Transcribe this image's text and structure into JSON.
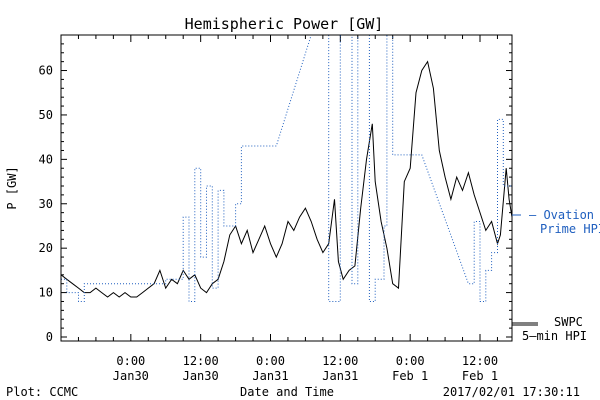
{
  "chart_data": {
    "type": "line",
    "title": "Hemispheric Power [GW]",
    "ylabel": "P [GW]",
    "xlabel": "Date and Time",
    "ylim": [
      0,
      68
    ],
    "xlim": [
      "2017-01-29 12:00",
      "2017-02-01 17:30"
    ],
    "y_ticks": [
      0,
      10,
      20,
      30,
      40,
      50,
      60
    ],
    "x_ticks": [
      {
        "t": "2017-01-30 00:00",
        "time": "0:00",
        "date": "Jan30"
      },
      {
        "t": "2017-01-30 12:00",
        "time": "12:00",
        "date": "Jan30"
      },
      {
        "t": "2017-01-31 00:00",
        "time": "0:00",
        "date": "Jan31"
      },
      {
        "t": "2017-01-31 12:00",
        "time": "12:00",
        "date": "Jan31"
      },
      {
        "t": "2017-02-01 00:00",
        "time": "0:00",
        "date": "Feb 1"
      },
      {
        "t": "2017-02-01 12:00",
        "time": "12:00",
        "date": "Feb 1"
      }
    ],
    "grid": false,
    "series": [
      {
        "name": "SWPC 5-min HPI",
        "label_line1": "SWPC",
        "label_line2": "5—min HPI",
        "color": "#000000",
        "style": "solid",
        "points": [
          [
            "2017-01-29 12:00",
            14
          ],
          [
            "2017-01-29 13:00",
            13
          ],
          [
            "2017-01-29 14:00",
            12
          ],
          [
            "2017-01-29 15:00",
            11
          ],
          [
            "2017-01-29 16:00",
            10
          ],
          [
            "2017-01-29 17:00",
            10
          ],
          [
            "2017-01-29 18:00",
            11
          ],
          [
            "2017-01-29 19:00",
            10
          ],
          [
            "2017-01-29 20:00",
            9
          ],
          [
            "2017-01-29 21:00",
            10
          ],
          [
            "2017-01-29 22:00",
            9
          ],
          [
            "2017-01-29 23:00",
            10
          ],
          [
            "2017-01-30 00:00",
            9
          ],
          [
            "2017-01-30 01:00",
            9
          ],
          [
            "2017-01-30 02:00",
            10
          ],
          [
            "2017-01-30 03:00",
            11
          ],
          [
            "2017-01-30 04:00",
            12
          ],
          [
            "2017-01-30 05:00",
            15
          ],
          [
            "2017-01-30 06:00",
            11
          ],
          [
            "2017-01-30 07:00",
            13
          ],
          [
            "2017-01-30 08:00",
            12
          ],
          [
            "2017-01-30 09:00",
            15
          ],
          [
            "2017-01-30 10:00",
            13
          ],
          [
            "2017-01-30 11:00",
            14
          ],
          [
            "2017-01-30 12:00",
            11
          ],
          [
            "2017-01-30 13:00",
            10
          ],
          [
            "2017-01-30 14:00",
            12
          ],
          [
            "2017-01-30 15:00",
            13
          ],
          [
            "2017-01-30 16:00",
            17
          ],
          [
            "2017-01-30 17:00",
            23
          ],
          [
            "2017-01-30 18:00",
            25
          ],
          [
            "2017-01-30 19:00",
            21
          ],
          [
            "2017-01-30 20:00",
            24
          ],
          [
            "2017-01-30 21:00",
            19
          ],
          [
            "2017-01-30 22:00",
            22
          ],
          [
            "2017-01-30 23:00",
            25
          ],
          [
            "2017-01-31 00:00",
            21
          ],
          [
            "2017-01-31 01:00",
            18
          ],
          [
            "2017-01-31 02:00",
            21
          ],
          [
            "2017-01-31 03:00",
            26
          ],
          [
            "2017-01-31 04:00",
            24
          ],
          [
            "2017-01-31 05:00",
            27
          ],
          [
            "2017-01-31 06:00",
            29
          ],
          [
            "2017-01-31 07:00",
            26
          ],
          [
            "2017-01-31 08:00",
            22
          ],
          [
            "2017-01-31 09:00",
            19
          ],
          [
            "2017-01-31 10:00",
            21
          ],
          [
            "2017-01-31 11:00",
            31
          ],
          [
            "2017-01-31 11:40",
            17
          ],
          [
            "2017-01-31 12:30",
            13
          ],
          [
            "2017-01-31 13:30",
            15
          ],
          [
            "2017-01-31 14:30",
            16
          ],
          [
            "2017-01-31 15:30",
            29
          ],
          [
            "2017-01-31 16:30",
            40
          ],
          [
            "2017-01-31 17:30",
            48
          ],
          [
            "2017-01-31 18:00",
            35
          ],
          [
            "2017-01-31 19:00",
            26
          ],
          [
            "2017-01-31 20:00",
            20
          ],
          [
            "2017-01-31 21:00",
            12
          ],
          [
            "2017-01-31 22:00",
            11
          ],
          [
            "2017-01-31 23:00",
            35
          ],
          [
            "2017-02-01 00:00",
            38
          ],
          [
            "2017-02-01 01:00",
            55
          ],
          [
            "2017-02-01 02:00",
            60
          ],
          [
            "2017-02-01 03:00",
            62
          ],
          [
            "2017-02-01 04:00",
            56
          ],
          [
            "2017-02-01 05:00",
            42
          ],
          [
            "2017-02-01 06:00",
            36
          ],
          [
            "2017-02-01 07:00",
            31
          ],
          [
            "2017-02-01 08:00",
            36
          ],
          [
            "2017-02-01 09:00",
            33
          ],
          [
            "2017-02-01 10:00",
            37
          ],
          [
            "2017-02-01 11:00",
            32
          ],
          [
            "2017-02-01 12:00",
            28
          ],
          [
            "2017-02-01 13:00",
            24
          ],
          [
            "2017-02-01 14:00",
            26
          ],
          [
            "2017-02-01 15:00",
            21
          ],
          [
            "2017-02-01 15:30",
            23
          ],
          [
            "2017-02-01 16:30",
            38
          ],
          [
            "2017-02-01 17:00",
            31
          ],
          [
            "2017-02-01 17:30",
            27
          ]
        ]
      },
      {
        "name": "Ovation Prime HPI",
        "label_line1": "— Ovation",
        "label_line2": "Prime HPI",
        "color": "#1f5fbf",
        "style": "dotted",
        "points": [
          [
            "2017-01-29 12:00",
            13
          ],
          [
            "2017-01-29 13:00",
            13
          ],
          [
            "2017-01-29 13:00",
            10
          ],
          [
            "2017-01-29 15:00",
            10
          ],
          [
            "2017-01-29 15:00",
            8
          ],
          [
            "2017-01-29 16:00",
            8
          ],
          [
            "2017-01-29 16:00",
            12
          ],
          [
            "2017-01-30 03:00",
            12
          ],
          [
            "2017-01-30 06:00",
            12
          ],
          [
            "2017-01-30 06:00",
            13
          ],
          [
            "2017-01-30 09:00",
            13
          ],
          [
            "2017-01-30 09:00",
            27
          ],
          [
            "2017-01-30 10:00",
            27
          ],
          [
            "2017-01-30 10:00",
            8
          ],
          [
            "2017-01-30 11:00",
            8
          ],
          [
            "2017-01-30 11:00",
            38
          ],
          [
            "2017-01-30 12:00",
            38
          ],
          [
            "2017-01-30 12:00",
            18
          ],
          [
            "2017-01-30 13:00",
            18
          ],
          [
            "2017-01-30 13:00",
            34
          ],
          [
            "2017-01-30 14:00",
            34
          ],
          [
            "2017-01-30 14:00",
            11
          ],
          [
            "2017-01-30 15:00",
            11
          ],
          [
            "2017-01-30 15:00",
            33
          ],
          [
            "2017-01-30 16:00",
            33
          ],
          [
            "2017-01-30 16:00",
            25
          ],
          [
            "2017-01-30 18:00",
            25
          ],
          [
            "2017-01-30 18:00",
            30
          ],
          [
            "2017-01-30 19:00",
            30
          ],
          [
            "2017-01-30 19:00",
            43
          ],
          [
            "2017-01-31 01:00",
            43
          ],
          [
            "2017-01-31 07:00",
            68
          ],
          [
            "2017-01-31 10:00",
            68
          ],
          [
            "2017-01-31 10:00",
            8
          ],
          [
            "2017-01-31 12:00",
            8
          ],
          [
            "2017-01-31 12:00",
            68
          ],
          [
            "2017-01-31 14:00",
            68
          ],
          [
            "2017-01-31 14:00",
            12
          ],
          [
            "2017-01-31 15:00",
            12
          ],
          [
            "2017-01-31 15:00",
            68
          ],
          [
            "2017-01-31 17:00",
            68
          ],
          [
            "2017-01-31 17:00",
            8
          ],
          [
            "2017-01-31 18:00",
            8
          ],
          [
            "2017-01-31 18:00",
            13
          ],
          [
            "2017-01-31 19:30",
            13
          ],
          [
            "2017-01-31 19:30",
            25
          ],
          [
            "2017-01-31 20:00",
            25
          ],
          [
            "2017-01-31 20:00",
            68
          ],
          [
            "2017-01-31 21:00",
            68
          ],
          [
            "2017-01-31 21:00",
            41
          ],
          [
            "2017-02-01 02:00",
            41
          ],
          [
            "2017-02-01 10:00",
            12
          ],
          [
            "2017-02-01 11:00",
            12
          ],
          [
            "2017-02-01 11:00",
            26
          ],
          [
            "2017-02-01 12:00",
            26
          ],
          [
            "2017-02-01 12:00",
            8
          ],
          [
            "2017-02-01 13:00",
            8
          ],
          [
            "2017-02-01 13:00",
            15
          ],
          [
            "2017-02-01 14:00",
            15
          ],
          [
            "2017-02-01 14:00",
            19
          ],
          [
            "2017-02-01 15:00",
            19
          ],
          [
            "2017-02-01 15:00",
            49
          ],
          [
            "2017-02-01 16:00",
            49
          ],
          [
            "2017-02-01 16:00",
            34
          ],
          [
            "2017-02-01 17:30",
            34
          ]
        ]
      }
    ]
  },
  "footer": {
    "left": "Plot: CCMC",
    "center": "Date and Time",
    "right": "2017/02/01 17:30:11"
  }
}
